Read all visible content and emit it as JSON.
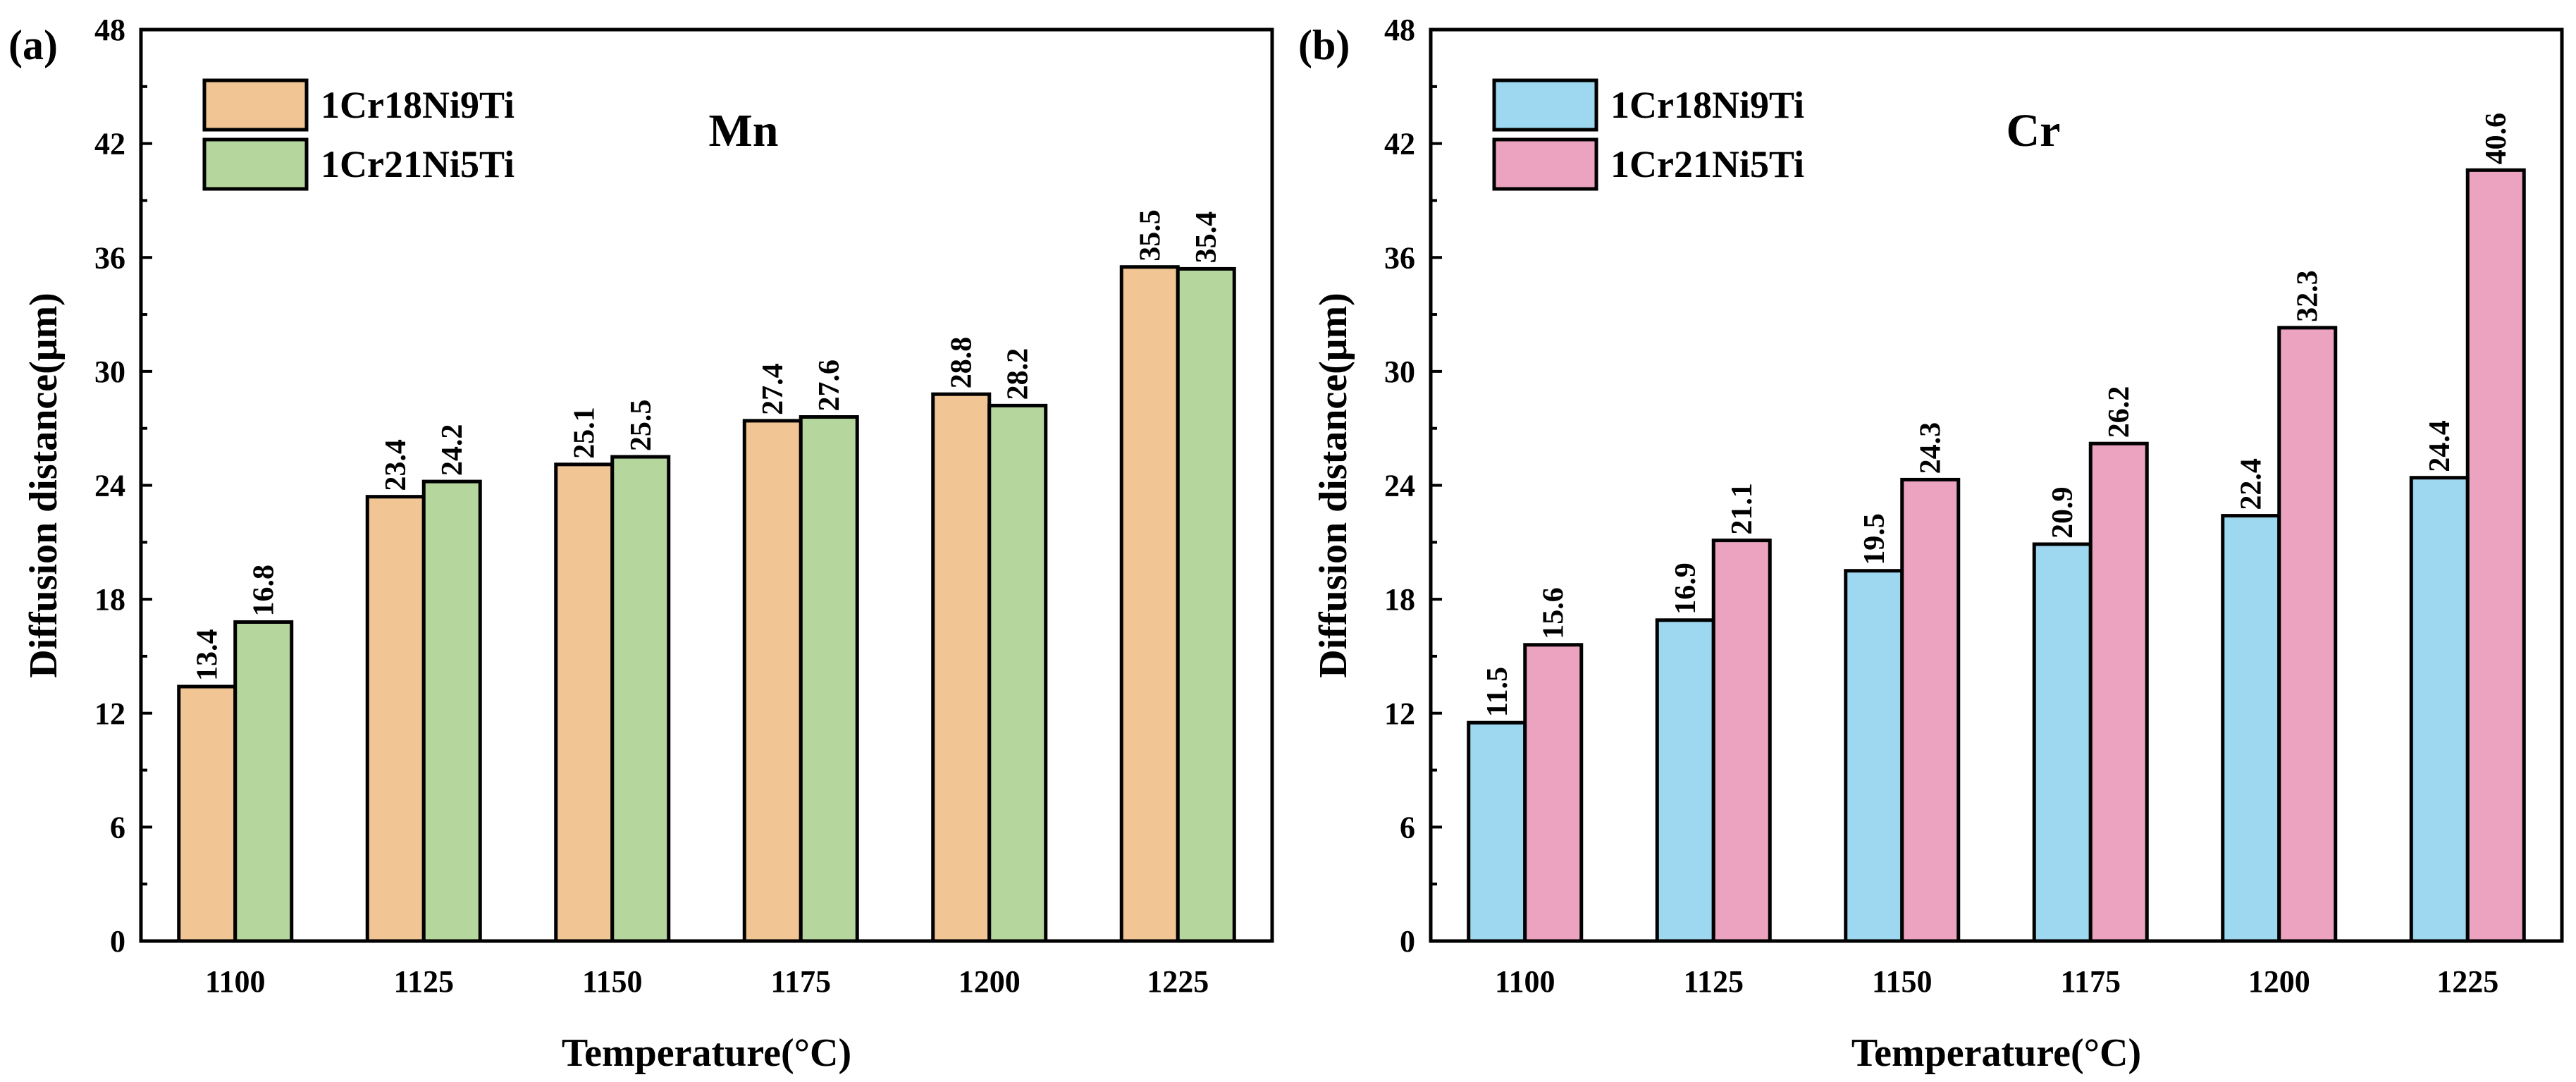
{
  "chart_data": [
    {
      "type": "bar",
      "panel_label": "(a)",
      "title": "Mn",
      "xlabel": "Temperature(°C)",
      "ylabel": "Diffusion distance(μm)",
      "ylim": [
        0,
        48
      ],
      "yticks": [
        "0",
        "6",
        "12",
        "18",
        "24",
        "30",
        "36",
        "42",
        "48"
      ],
      "categories": [
        "1100",
        "1125",
        "1150",
        "1175",
        "1200",
        "1225"
      ],
      "legend_position": "top-left",
      "series": [
        {
          "name": "1Cr18Ni9Ti",
          "color": "#F2C595",
          "values": [
            13.4,
            23.4,
            25.1,
            27.4,
            28.8,
            35.5
          ],
          "labels": [
            "13.4",
            "23.4",
            "25.1",
            "27.4",
            "28.8",
            "35.5"
          ]
        },
        {
          "name": "1Cr21Ni5Ti",
          "color": "#B5D69C",
          "values": [
            16.8,
            24.2,
            25.5,
            27.6,
            28.2,
            35.4
          ],
          "labels": [
            "16.8",
            "24.2",
            "25.5",
            "27.6",
            "28.2",
            "35.4"
          ]
        }
      ]
    },
    {
      "type": "bar",
      "panel_label": "(b)",
      "title": "Cr",
      "xlabel": "Temperature(°C)",
      "ylabel": "Diffusion distance(μm)",
      "ylim": [
        0,
        48
      ],
      "yticks": [
        "0",
        "6",
        "12",
        "18",
        "24",
        "30",
        "36",
        "42",
        "48"
      ],
      "categories": [
        "1100",
        "1125",
        "1150",
        "1175",
        "1200",
        "1225"
      ],
      "legend_position": "top-left",
      "series": [
        {
          "name": "1Cr18Ni9Ti",
          "color": "#9DD8F0",
          "values": [
            11.5,
            16.9,
            19.5,
            20.9,
            22.4,
            24.4
          ],
          "labels": [
            "11.5",
            "16.9",
            "19.5",
            "20.9",
            "22.4",
            "24.4"
          ]
        },
        {
          "name": "1Cr21Ni5Ti",
          "color": "#EBA3C0",
          "values": [
            15.6,
            21.1,
            24.3,
            26.2,
            32.3,
            40.6
          ],
          "labels": [
            "15.6",
            "21.1",
            "24.3",
            "26.2",
            "32.3",
            "40.6"
          ]
        }
      ]
    }
  ]
}
